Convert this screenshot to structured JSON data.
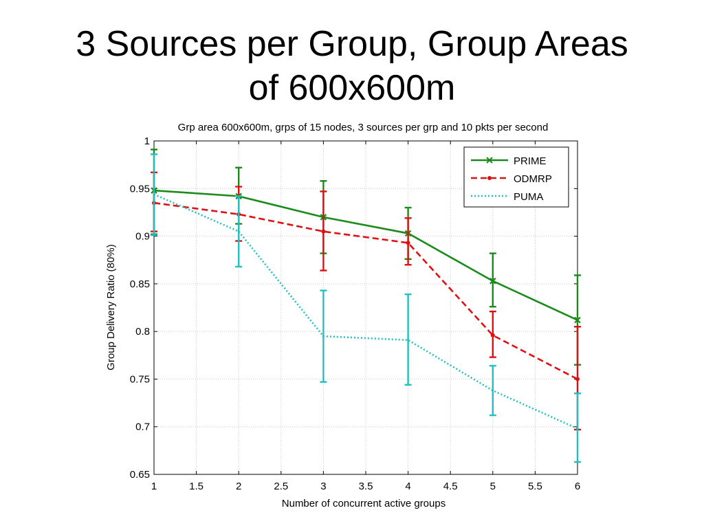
{
  "slide": {
    "title_line1": "3 Sources per Group, Group Areas",
    "title_line2": "of 600x600m"
  },
  "chart_data": {
    "type": "line",
    "title": "Grp area 600x600m, grps of 15 nodes, 3 sources per grp and 10 pkts per second",
    "xlabel": "Number of concurrent active groups",
    "ylabel": "Group Delivery Ratio (80%)",
    "xlim": [
      1,
      6
    ],
    "ylim": [
      0.65,
      1
    ],
    "xticks": [
      1,
      1.5,
      2,
      2.5,
      3,
      3.5,
      4,
      4.5,
      5,
      5.5,
      6
    ],
    "xtick_labels": [
      "1",
      "1.5",
      "2",
      "2.5",
      "3",
      "3.5",
      "4",
      "4.5",
      "5",
      "5.5",
      "6"
    ],
    "yticks": [
      0.65,
      0.7,
      0.75,
      0.8,
      0.85,
      0.9,
      0.95,
      1
    ],
    "ytick_labels": [
      "0.65",
      "0.7",
      "0.75",
      "0.8",
      "0.85",
      "0.9",
      "0.95",
      "1"
    ],
    "grid": true,
    "legend_position": "top-right",
    "x": [
      1,
      2,
      3,
      4,
      5,
      6
    ],
    "series": [
      {
        "name": "PRIME",
        "color": "#1a8a1a",
        "style": "solid",
        "marker": "x",
        "values": [
          0.948,
          0.942,
          0.92,
          0.903,
          0.853,
          0.812
        ],
        "err_low": [
          0.902,
          0.913,
          0.882,
          0.876,
          0.826,
          0.765
        ],
        "err_high": [
          0.991,
          0.972,
          0.958,
          0.93,
          0.882,
          0.859
        ]
      },
      {
        "name": "ODMRP",
        "color": "#e01010",
        "style": "dashed",
        "marker": "dot",
        "values": [
          0.935,
          0.923,
          0.905,
          0.893,
          0.796,
          0.75
        ],
        "err_low": [
          0.905,
          0.895,
          0.864,
          0.87,
          0.773,
          0.697
        ],
        "err_high": [
          0.967,
          0.952,
          0.947,
          0.919,
          0.821,
          0.805
        ]
      },
      {
        "name": "PUMA",
        "color": "#20c0c0",
        "style": "dotted",
        "marker": "none",
        "values": [
          0.944,
          0.905,
          0.795,
          0.791,
          0.738,
          0.698
        ],
        "err_low": [
          0.901,
          0.868,
          0.747,
          0.744,
          0.712,
          0.663
        ],
        "err_high": [
          0.986,
          0.942,
          0.843,
          0.839,
          0.764,
          0.735
        ]
      }
    ]
  }
}
